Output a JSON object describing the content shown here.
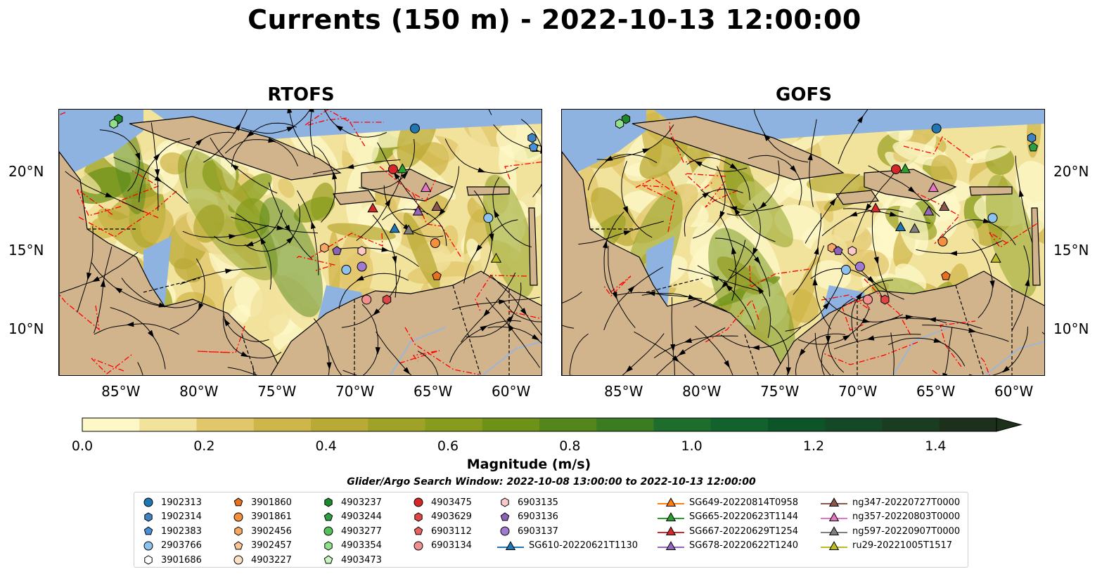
{
  "title": "Currents (150 m) - 2022-10-13 12:00:00",
  "panels": [
    {
      "title": "RTOFS"
    },
    {
      "title": "GOFS"
    }
  ],
  "map": {
    "lon_range": [
      -89,
      -58
    ],
    "lat_range": [
      7,
      24
    ],
    "lon_ticks": [
      "85°W",
      "80°W",
      "75°W",
      "70°W",
      "65°W",
      "60°W"
    ],
    "lat_ticks": [
      "20°N",
      "15°N",
      "10°N"
    ],
    "land_color": "#d1b48c",
    "shelf_color": "#8fb3e0",
    "streamline_color": "#000000",
    "eez_color": "#ff0000"
  },
  "colorbar": {
    "label": "Magnitude (m/s)",
    "ticks": [
      "0.0",
      "0.2",
      "0.4",
      "0.6",
      "0.8",
      "1.0",
      "1.2",
      "1.4"
    ],
    "range": [
      0,
      1.5
    ],
    "extend": "max",
    "colors": [
      "#fdf8c8",
      "#f1e29c",
      "#e2c66c",
      "#cfb64a",
      "#b9aa36",
      "#9ea328",
      "#879c1c",
      "#6e9218",
      "#53871c",
      "#3b7c22",
      "#1f6d2c",
      "#11622c",
      "#0d5429",
      "#144826",
      "#1a3d22",
      "#1d301c"
    ]
  },
  "search_window": "Glider/Argo Search Window: 2022-10-08 13:00:00 to 2022-10-13 12:00:00",
  "legend": [
    {
      "label": "1902313",
      "marker": "circle",
      "color": "#1f77b4"
    },
    {
      "label": "1902314",
      "marker": "hexagon",
      "color": "#3e82c4"
    },
    {
      "label": "1902383",
      "marker": "pentagon",
      "color": "#4a90d9"
    },
    {
      "label": "2903766",
      "marker": "circle",
      "color": "#8ec2ee"
    },
    {
      "label": "3901686",
      "marker": "hexagon",
      "color": "#ffffff"
    },
    {
      "label": "3901860",
      "marker": "pentagon",
      "color": "#e8711d"
    },
    {
      "label": "3901861",
      "marker": "circle",
      "color": "#f4903d"
    },
    {
      "label": "3902456",
      "marker": "hexagon",
      "color": "#f8a865"
    },
    {
      "label": "3902457",
      "marker": "pentagon",
      "color": "#fbc592"
    },
    {
      "label": "4903227",
      "marker": "circle",
      "color": "#fde0c5"
    },
    {
      "label": "4903237",
      "marker": "hexagon",
      "color": "#1a8a2a"
    },
    {
      "label": "4903244",
      "marker": "pentagon",
      "color": "#2ca040"
    },
    {
      "label": "4903277",
      "marker": "circle",
      "color": "#55c05a"
    },
    {
      "label": "4903354",
      "marker": "hexagon",
      "color": "#8fe08a"
    },
    {
      "label": "4903473",
      "marker": "pentagon",
      "color": "#c8f5bf"
    },
    {
      "label": "4903475",
      "marker": "circle",
      "color": "#d62728"
    },
    {
      "label": "4903629",
      "marker": "hexagon",
      "color": "#e04545"
    },
    {
      "label": "6903112",
      "marker": "pentagon",
      "color": "#e86060"
    },
    {
      "label": "6903134",
      "marker": "circle",
      "color": "#f29090"
    },
    {
      "label": "6903135",
      "marker": "hexagon",
      "color": "#fcc8c8"
    },
    {
      "label": "6903136",
      "marker": "pentagon",
      "color": "#8c63b8"
    },
    {
      "label": "6903137",
      "marker": "circle",
      "color": "#a07ad0"
    },
    {
      "label": "SG610-20220621T1130",
      "marker": "triangle",
      "color": "#1f77b4"
    },
    {
      "label": "SG649-20220814T0958",
      "marker": "triangle",
      "color": "#ff7f0e"
    },
    {
      "label": "SG665-20220623T1144",
      "marker": "triangle",
      "color": "#2ca02c"
    },
    {
      "label": "SG667-20220629T1254",
      "marker": "triangle",
      "color": "#d62728"
    },
    {
      "label": "SG678-20220622T1240",
      "marker": "triangle",
      "color": "#9467bd"
    },
    {
      "label": "ng347-20220727T0000",
      "marker": "triangle",
      "color": "#8c564b"
    },
    {
      "label": "ng357-20220803T0000",
      "marker": "triangle",
      "color": "#e377c2"
    },
    {
      "label": "ng597-20220907T0000",
      "marker": "triangle",
      "color": "#7f7f7f"
    },
    {
      "label": "ru29-20221005T1517",
      "marker": "triangle",
      "color": "#bcbd22"
    }
  ],
  "platforms_rtofs": [
    {
      "label": "1902313",
      "lon": -66.2,
      "lat": 22.8
    },
    {
      "label": "1902314",
      "lon": -58.7,
      "lat": 22.2
    },
    {
      "label": "1902383",
      "lon": -58.6,
      "lat": 21.6
    },
    {
      "label": "4903237",
      "lon": -85.2,
      "lat": 23.4
    },
    {
      "label": "4903354",
      "lon": -85.5,
      "lat": 23.1
    },
    {
      "label": "4903475",
      "lon": -67.6,
      "lat": 20.2
    },
    {
      "label": "SG665-20220623T1144",
      "lon": -67.0,
      "lat": 20.2
    },
    {
      "label": "ng357-20220803T0000",
      "lon": -65.5,
      "lat": 19.0
    },
    {
      "label": "SG667-20220629T1254",
      "lon": -68.9,
      "lat": 17.7
    },
    {
      "label": "SG678-20220622T1240",
      "lon": -66.0,
      "lat": 17.5
    },
    {
      "label": "ng347-20220727T0000",
      "lon": -64.8,
      "lat": 17.8
    },
    {
      "label": "2903766",
      "lon": -61.5,
      "lat": 17.1
    },
    {
      "label": "SG610-20220621T1130",
      "lon": -67.5,
      "lat": 16.4
    },
    {
      "label": "ng597-20220907T0000",
      "lon": -66.6,
      "lat": 16.3
    },
    {
      "label": "3901861",
      "lon": -64.9,
      "lat": 15.5
    },
    {
      "label": "3902456",
      "lon": -72.0,
      "lat": 15.2
    },
    {
      "label": "6903136",
      "lon": -71.2,
      "lat": 15.0
    },
    {
      "label": "6903135",
      "lon": -69.6,
      "lat": 15.0
    },
    {
      "label": "2903766",
      "lon": -70.6,
      "lat": 13.8
    },
    {
      "label": "6903137",
      "lon": -69.6,
      "lat": 14.0
    },
    {
      "label": "ru29-20221005T1517",
      "lon": -61.0,
      "lat": 14.5
    },
    {
      "label": "3901860",
      "lon": -64.8,
      "lat": 13.4
    },
    {
      "label": "6903134",
      "lon": -69.3,
      "lat": 11.9
    },
    {
      "label": "4903629",
      "lon": -68.0,
      "lat": 11.9
    }
  ],
  "platforms_gofs": [
    {
      "label": "1902313",
      "lon": -65.0,
      "lat": 22.8
    },
    {
      "label": "1902314",
      "lon": -58.9,
      "lat": 22.2
    },
    {
      "label": "4903244",
      "lon": -58.8,
      "lat": 21.6
    },
    {
      "label": "4903237",
      "lon": -84.9,
      "lat": 23.4
    },
    {
      "label": "4903354",
      "lon": -85.3,
      "lat": 23.1
    },
    {
      "label": "4903475",
      "lon": -67.6,
      "lat": 20.2
    },
    {
      "label": "SG665-20220623T1144",
      "lon": -67.0,
      "lat": 20.2
    },
    {
      "label": "ng357-20220803T0000",
      "lon": -65.2,
      "lat": 19.0
    },
    {
      "label": "SG667-20220629T1254",
      "lon": -68.9,
      "lat": 17.7
    },
    {
      "label": "SG678-20220622T1240",
      "lon": -65.5,
      "lat": 17.5
    },
    {
      "label": "ng347-20220727T0000",
      "lon": -64.5,
      "lat": 17.8
    },
    {
      "label": "2903766",
      "lon": -61.4,
      "lat": 17.1
    },
    {
      "label": "SG610-20220621T1130",
      "lon": -67.3,
      "lat": 16.5
    },
    {
      "label": "ng597-20220907T0000",
      "lon": -66.4,
      "lat": 16.4
    },
    {
      "label": "3901861",
      "lon": -64.6,
      "lat": 15.6
    },
    {
      "label": "3902456",
      "lon": -71.7,
      "lat": 15.2
    },
    {
      "label": "6903136",
      "lon": -71.3,
      "lat": 15.0
    },
    {
      "label": "6903135",
      "lon": -70.4,
      "lat": 15.0
    },
    {
      "label": "2903766",
      "lon": -70.8,
      "lat": 13.8
    },
    {
      "label": "6903137",
      "lon": -69.9,
      "lat": 14.0
    },
    {
      "label": "ru29-20221005T1517",
      "lon": -61.2,
      "lat": 14.5
    },
    {
      "label": "3901860",
      "lon": -64.4,
      "lat": 13.4
    },
    {
      "label": "6903134",
      "lon": -69.4,
      "lat": 11.9
    },
    {
      "label": "4903629",
      "lon": -68.3,
      "lat": 11.9
    }
  ]
}
